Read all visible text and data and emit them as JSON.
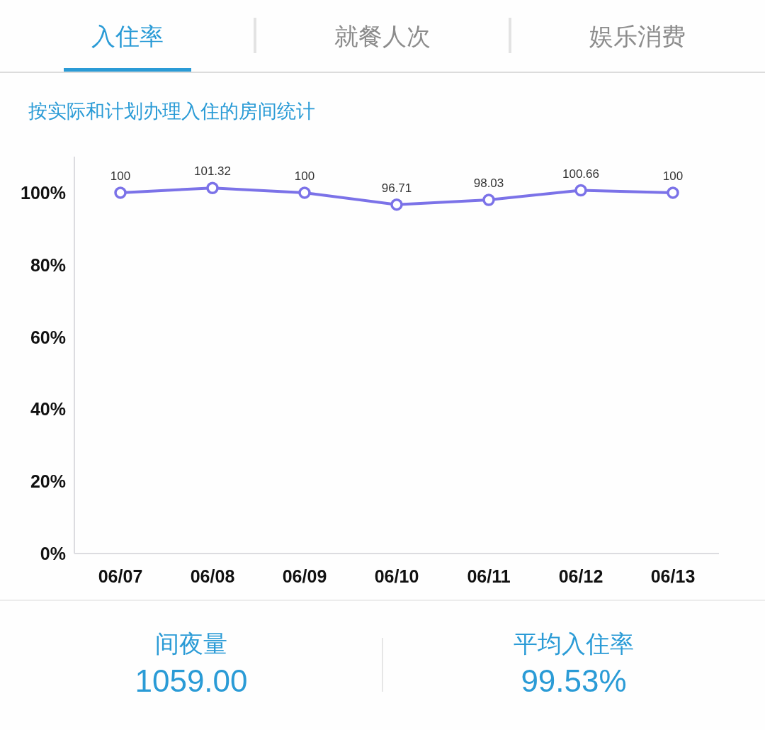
{
  "chart_data": [
    {
      "type": "other",
      "annotations": [
        "入住率",
        "就餐人次",
        "娱乐消费"
      ]
    },
    {
      "type": "line",
      "title": "按实际和计划办理入住的房间统计",
      "categories": [
        "06/07",
        "06/08",
        "06/09",
        "06/10",
        "06/11",
        "06/12",
        "06/13"
      ],
      "series": [
        {
          "color": "#7b72e8",
          "values": [
            100,
            101.32,
            100,
            96.71,
            98.03,
            100.66,
            100
          ]
        }
      ],
      "ylim": [
        0,
        110
      ],
      "yticks": [
        {
          "value": 0,
          "label": "0%"
        },
        {
          "value": 20,
          "label": "20%"
        },
        {
          "value": 40,
          "label": "40%"
        },
        {
          "value": 60,
          "label": "60%"
        },
        {
          "value": 80,
          "label": "80%"
        },
        {
          "value": 100,
          "label": "100%"
        }
      ],
      "data_labels": true,
      "marker": "circle"
    },
    {
      "type": "other",
      "annotations": [
        "间夜量",
        "1059.00",
        "平均入住率",
        "99.53%"
      ]
    }
  ]
}
